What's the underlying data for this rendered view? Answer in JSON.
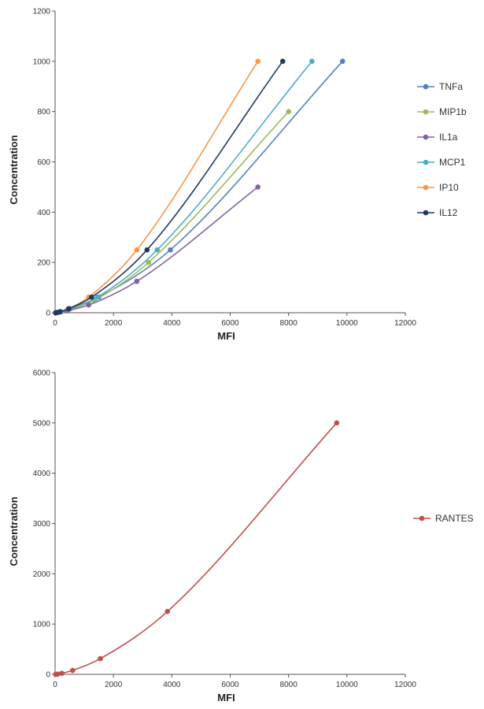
{
  "chart_data": [
    {
      "type": "scatter",
      "mode": "lines+markers",
      "xlabel": "MFI",
      "ylabel": "Concentration",
      "xlim": [
        0,
        12000
      ],
      "ylim": [
        0,
        1200
      ],
      "xticks": [
        0,
        2000,
        4000,
        6000,
        8000,
        10000,
        12000
      ],
      "yticks": [
        0,
        200,
        400,
        600,
        800,
        1000,
        1200
      ],
      "grid": false,
      "legend": "right",
      "series": [
        {
          "name": "TNFa",
          "color": "#4f81bd",
          "x": [
            20,
            80,
            200,
            520,
            1500,
            3950,
            9850
          ],
          "y": [
            0,
            1,
            4,
            16,
            62,
            250,
            1000
          ]
        },
        {
          "name": "MIP1b",
          "color": "#9bbb59",
          "x": [
            20,
            70,
            180,
            480,
            1350,
            3200,
            8000
          ],
          "y": [
            0,
            1,
            3,
            13,
            50,
            200,
            800
          ]
        },
        {
          "name": "IL1a",
          "color": "#8064a2",
          "x": [
            20,
            60,
            150,
            400,
            1150,
            2800,
            6950
          ],
          "y": [
            0,
            0.5,
            2,
            8,
            31,
            125,
            500
          ]
        },
        {
          "name": "MCP1",
          "color": "#4bacc6",
          "x": [
            20,
            70,
            190,
            500,
            1450,
            3500,
            8800
          ],
          "y": [
            0,
            1,
            4,
            16,
            62,
            250,
            1000
          ]
        },
        {
          "name": "IP10",
          "color": "#f79646",
          "x": [
            20,
            60,
            160,
            450,
            1150,
            2800,
            6950
          ],
          "y": [
            0,
            1,
            4,
            16,
            62,
            250,
            1000
          ]
        },
        {
          "name": "IL12",
          "color": "#1f3864",
          "x": [
            20,
            65,
            170,
            470,
            1250,
            3150,
            7800
          ],
          "y": [
            0,
            1,
            4,
            16,
            62,
            250,
            1000
          ]
        }
      ]
    },
    {
      "type": "scatter",
      "mode": "lines+markers",
      "xlabel": "MFI",
      "ylabel": "Concentration",
      "xlim": [
        0,
        12000
      ],
      "ylim": [
        0,
        6000
      ],
      "xticks": [
        0,
        2000,
        4000,
        6000,
        8000,
        10000,
        12000
      ],
      "yticks": [
        0,
        1000,
        2000,
        3000,
        4000,
        5000,
        6000
      ],
      "grid": false,
      "legend": "right",
      "series": [
        {
          "name": "RANTES",
          "color": "#c0504d",
          "x": [
            20,
            90,
            230,
            600,
            1550,
            3850,
            9650
          ],
          "y": [
            0,
            5,
            20,
            78,
            312,
            1250,
            5000
          ]
        }
      ]
    }
  ]
}
